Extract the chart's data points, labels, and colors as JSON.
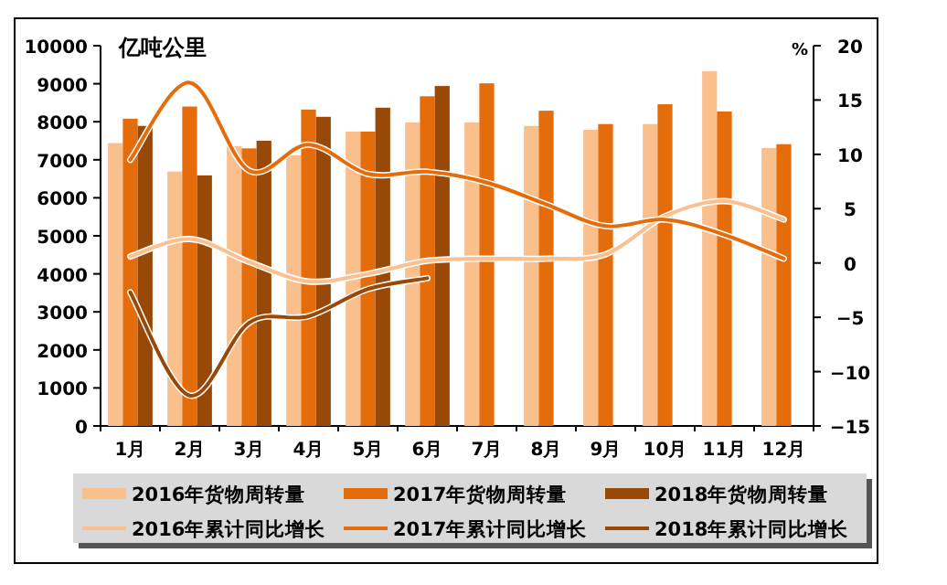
{
  "chart_data": {
    "type": "bar",
    "ylabel": "亿吨公里",
    "y2label": "%",
    "categories": [
      "1月",
      "2月",
      "3月",
      "4月",
      "5月",
      "6月",
      "7月",
      "8月",
      "9月",
      "10月",
      "11月",
      "12月"
    ],
    "ylim": [
      0,
      10000
    ],
    "yticks": [
      0,
      1000,
      2000,
      3000,
      4000,
      5000,
      6000,
      7000,
      8000,
      9000,
      10000
    ],
    "y2lim": [
      -15,
      20
    ],
    "y2ticks": [
      -15,
      -10,
      -5,
      0,
      5,
      10,
      15,
      20
    ],
    "legend": "bottom",
    "grid": false,
    "series": [
      {
        "name": "2016年货物周转量",
        "color": "#f9c08e",
        "values": [
          7440,
          6690,
          7360,
          7120,
          7740,
          7980,
          7980,
          7890,
          7790,
          7940,
          9330,
          7310
        ]
      },
      {
        "name": "2017年货物周转量",
        "color": "#e46c0a",
        "values": [
          8080,
          8400,
          7300,
          8320,
          7740,
          8670,
          9010,
          8290,
          7940,
          8460,
          8270,
          7410
        ]
      },
      {
        "name": "2018年货物周转量",
        "color": "#984807",
        "values": [
          7890,
          6590,
          7500,
          8130,
          8370,
          8940,
          null,
          null,
          null,
          null,
          null,
          null
        ]
      },
      {
        "name": "2016年累计同比增长",
        "type": "line",
        "axis": "y2",
        "color": "#fac090",
        "values": [
          0.6,
          2.2,
          0.1,
          -1.7,
          -1.0,
          0.2,
          0.4,
          0.4,
          0.8,
          4.3,
          5.7,
          4.0
        ]
      },
      {
        "name": "2017年累计同比增长",
        "type": "line",
        "axis": "y2",
        "color": "#e46c0a",
        "values": [
          9.5,
          16.6,
          8.5,
          10.9,
          8.2,
          8.4,
          7.4,
          5.4,
          3.4,
          4.0,
          2.6,
          0.4
        ]
      },
      {
        "name": "2018年累计同比增长",
        "type": "line",
        "axis": "y2",
        "color": "#984807",
        "values": [
          -2.7,
          -12.2,
          -5.5,
          -4.9,
          -2.4,
          -1.4,
          null,
          null,
          null,
          null,
          null,
          null
        ]
      }
    ]
  }
}
